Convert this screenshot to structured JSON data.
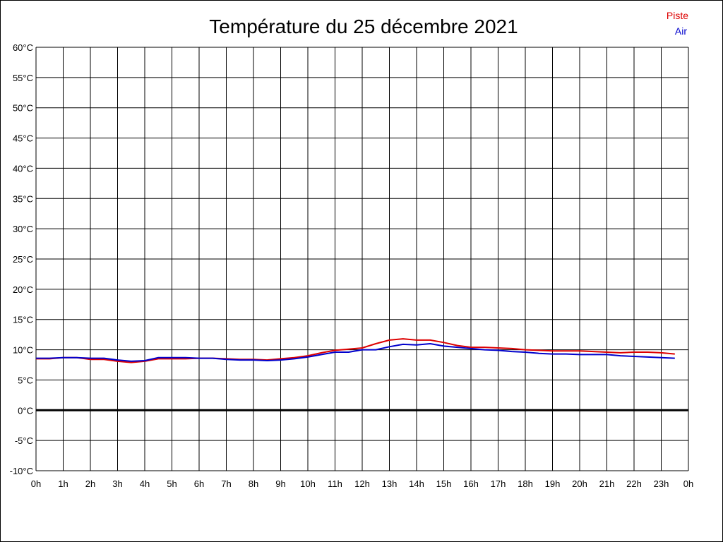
{
  "chart_data": {
    "type": "line",
    "title": "Température du 25 décembre 2021",
    "xlabel": "",
    "ylabel": "",
    "x_ticks": [
      "0h",
      "1h",
      "2h",
      "3h",
      "4h",
      "5h",
      "6h",
      "7h",
      "8h",
      "9h",
      "10h",
      "11h",
      "12h",
      "13h",
      "14h",
      "15h",
      "16h",
      "17h",
      "18h",
      "19h",
      "20h",
      "21h",
      "22h",
      "23h",
      "0h"
    ],
    "y_ticks": [
      "-10°C",
      "-5°C",
      "0°C",
      "5°C",
      "10°C",
      "15°C",
      "20°C",
      "25°C",
      "30°C",
      "35°C",
      "40°C",
      "45°C",
      "50°C",
      "55°C",
      "60°C"
    ],
    "xlim": [
      0,
      24
    ],
    "ylim": [
      -10,
      60
    ],
    "grid": true,
    "zero_line": true,
    "legend_position": "top-right",
    "colors": {
      "piste": "#dd0000",
      "air": "#0000cc"
    },
    "series": [
      {
        "name": "Piste",
        "x": [
          0,
          0.5,
          1,
          1.5,
          2,
          2.5,
          3,
          3.5,
          4,
          4.5,
          5,
          5.5,
          6,
          6.5,
          7,
          7.5,
          8,
          8.5,
          9,
          9.5,
          10,
          10.5,
          11,
          11.5,
          12,
          12.5,
          13,
          13.5,
          14,
          14.5,
          15,
          15.5,
          16,
          16.5,
          17,
          17.5,
          18,
          18.5,
          19,
          19.5,
          20,
          20.5,
          21,
          21.5,
          22,
          22.5,
          23,
          23.5
        ],
        "values": [
          8.5,
          8.5,
          8.7,
          8.7,
          8.4,
          8.4,
          8.1,
          7.9,
          8.1,
          8.5,
          8.5,
          8.5,
          8.6,
          8.6,
          8.5,
          8.4,
          8.4,
          8.3,
          8.5,
          8.7,
          9.0,
          9.5,
          9.9,
          10.1,
          10.3,
          11.0,
          11.6,
          11.8,
          11.6,
          11.6,
          11.2,
          10.7,
          10.4,
          10.4,
          10.3,
          10.2,
          10.0,
          9.9,
          9.8,
          9.8,
          9.8,
          9.7,
          9.6,
          9.5,
          9.6,
          9.6,
          9.5,
          9.3
        ]
      },
      {
        "name": "Air",
        "x": [
          0,
          0.5,
          1,
          1.5,
          2,
          2.5,
          3,
          3.5,
          4,
          4.5,
          5,
          5.5,
          6,
          6.5,
          7,
          7.5,
          8,
          8.5,
          9,
          9.5,
          10,
          10.5,
          11,
          11.5,
          12,
          12.5,
          13,
          13.5,
          14,
          14.5,
          15,
          15.5,
          16,
          16.5,
          17,
          17.5,
          18,
          18.5,
          19,
          19.5,
          20,
          20.5,
          21,
          21.5,
          22,
          22.5,
          23,
          23.5
        ],
        "values": [
          8.6,
          8.6,
          8.7,
          8.7,
          8.6,
          8.6,
          8.3,
          8.1,
          8.2,
          8.7,
          8.7,
          8.7,
          8.6,
          8.6,
          8.4,
          8.3,
          8.3,
          8.2,
          8.3,
          8.5,
          8.8,
          9.2,
          9.6,
          9.6,
          10.0,
          10.0,
          10.5,
          10.9,
          10.8,
          11.0,
          10.6,
          10.4,
          10.2,
          10.0,
          9.9,
          9.7,
          9.6,
          9.4,
          9.3,
          9.3,
          9.2,
          9.2,
          9.2,
          9.0,
          8.9,
          8.8,
          8.7,
          8.6
        ]
      }
    ]
  }
}
